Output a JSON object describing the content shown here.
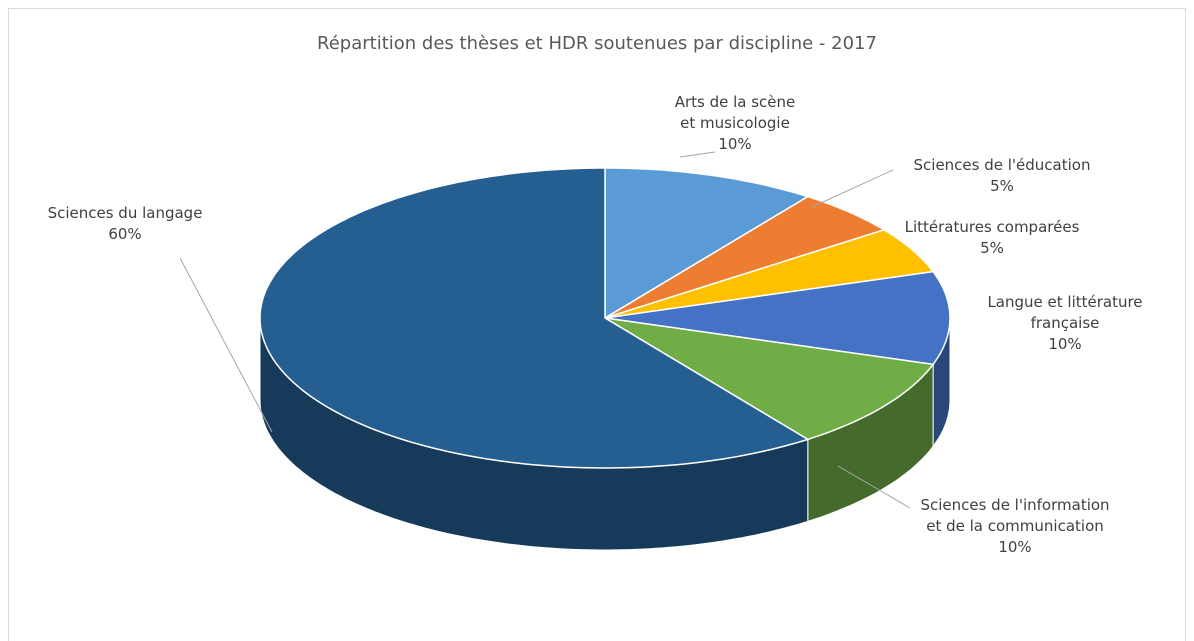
{
  "chart_data": {
    "type": "pie",
    "title": "Répartition des thèses et HDR soutenues par discipline - 2017",
    "categories": [
      "Arts de la scène et musicologie",
      "Sciences de l'éducation",
      "Littératures comparées",
      "Langue et littérature française",
      "Sciences de l'information et de la communication",
      "Sciences du langage"
    ],
    "values": [
      10,
      5,
      5,
      10,
      10,
      60
    ],
    "value_labels": [
      "10%",
      "5%",
      "5%",
      "10%",
      "10%",
      "60%"
    ],
    "colors": [
      "#5b9bd5",
      "#ed7d31",
      "#ffc000",
      "#4472c4",
      "#70ad47",
      "#255e91"
    ]
  }
}
